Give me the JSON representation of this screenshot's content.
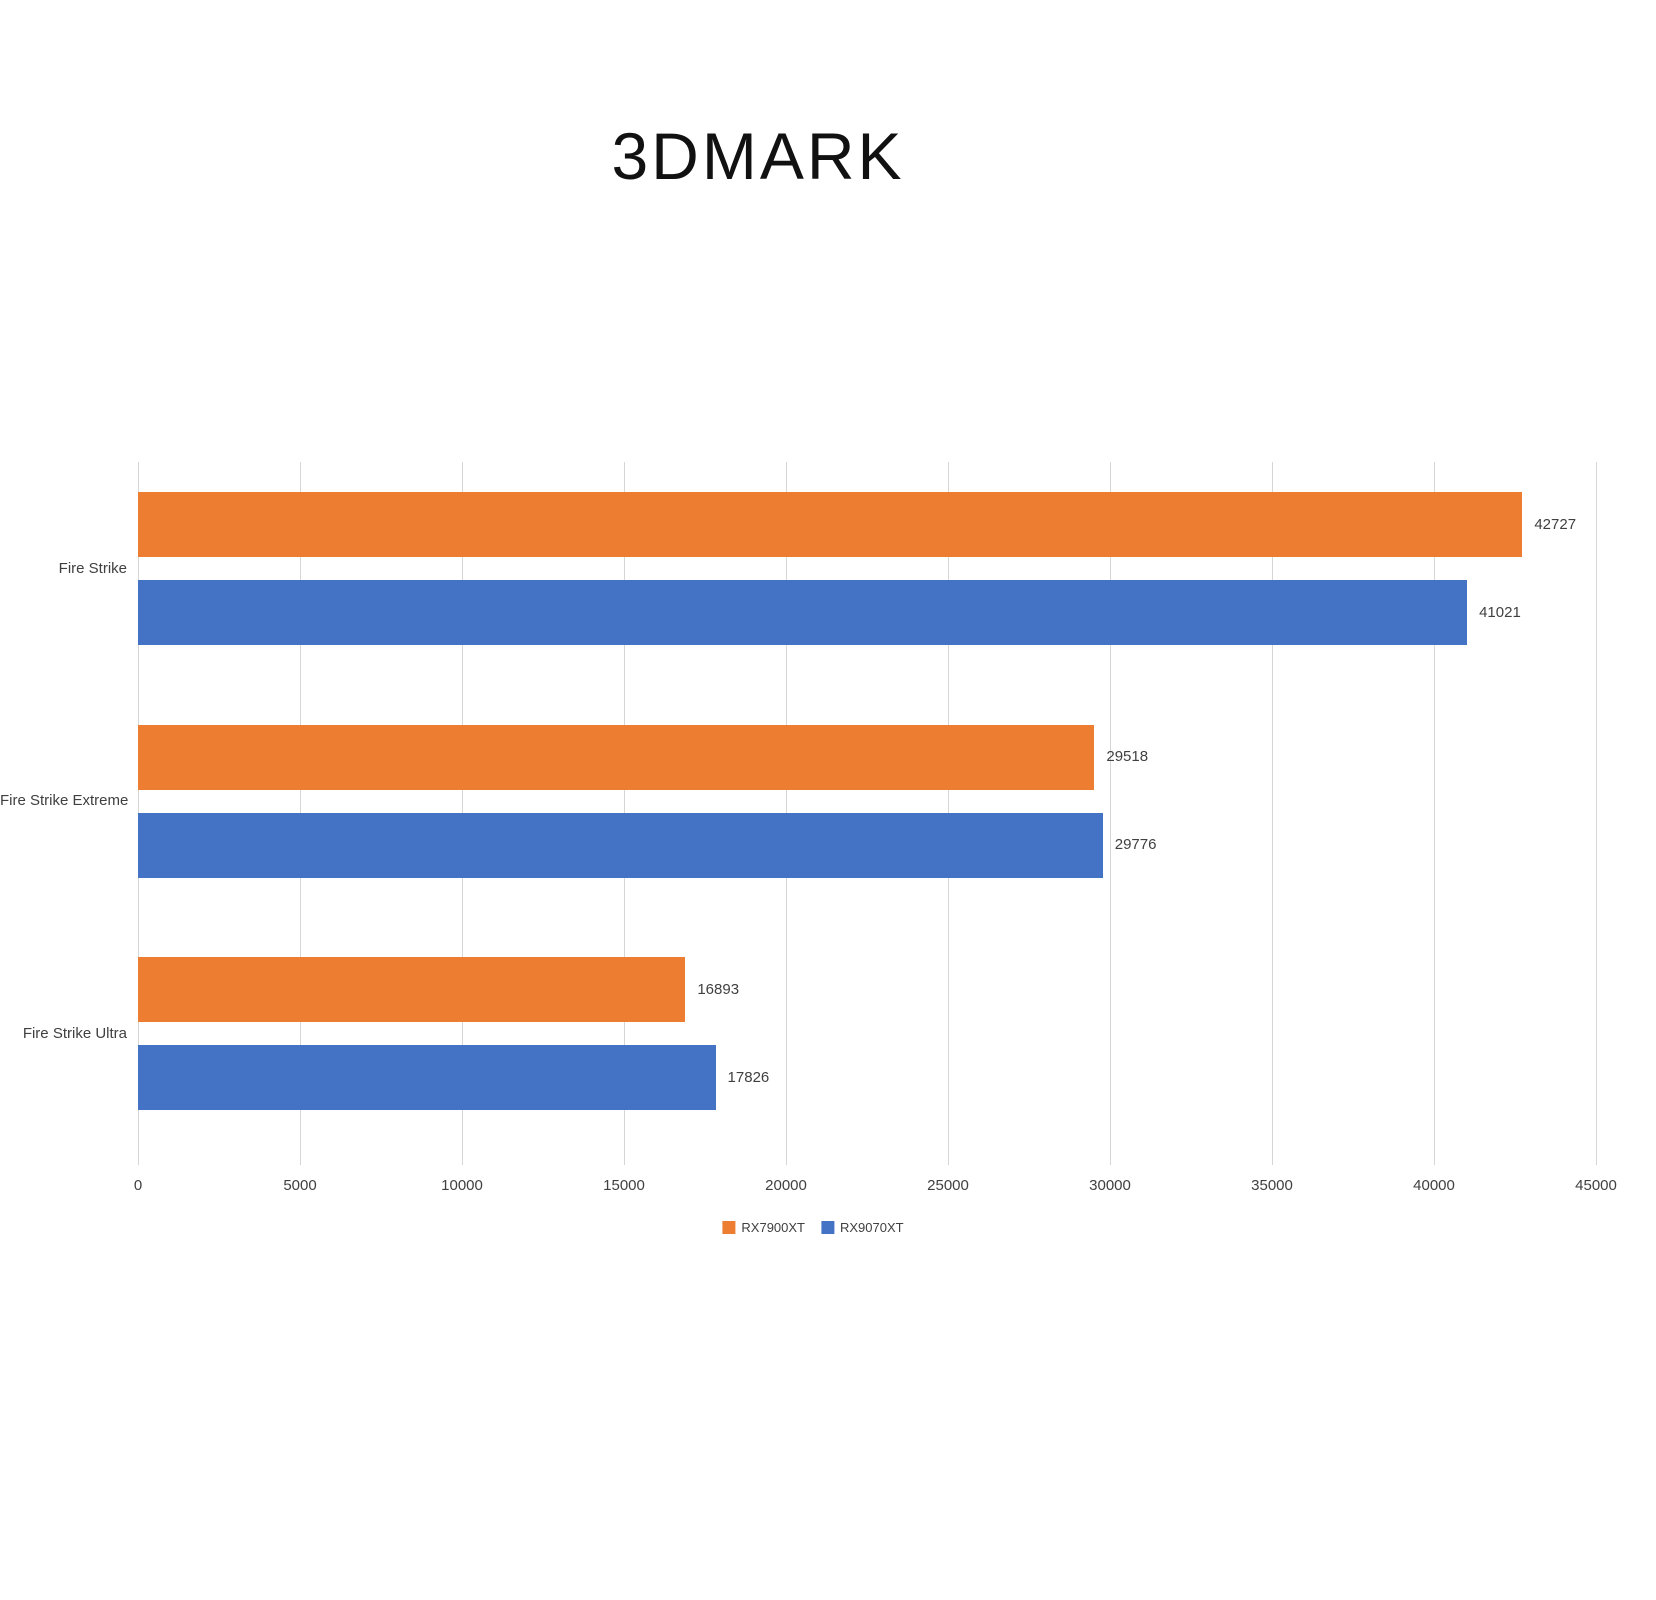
{
  "title": "3DMARK",
  "chart_data": {
    "type": "bar",
    "orientation": "horizontal",
    "title": "3DMARK",
    "categories": [
      "Fire Strike",
      "Fire Strike Extreme",
      "Fire Strike Ultra"
    ],
    "series": [
      {
        "name": "RX7900XT",
        "color": "#ED7D31",
        "values": [
          42727,
          29518,
          16893
        ]
      },
      {
        "name": "RX9070XT",
        "color": "#4472C4",
        "values": [
          41021,
          29776,
          17826
        ]
      }
    ],
    "xlabel": "",
    "ylabel": "",
    "xlim": [
      0,
      45000
    ],
    "x_ticks": [
      0,
      5000,
      10000,
      15000,
      20000,
      25000,
      30000,
      35000,
      40000,
      45000
    ],
    "grid": true,
    "data_labels": true,
    "legend_position": "bottom"
  }
}
